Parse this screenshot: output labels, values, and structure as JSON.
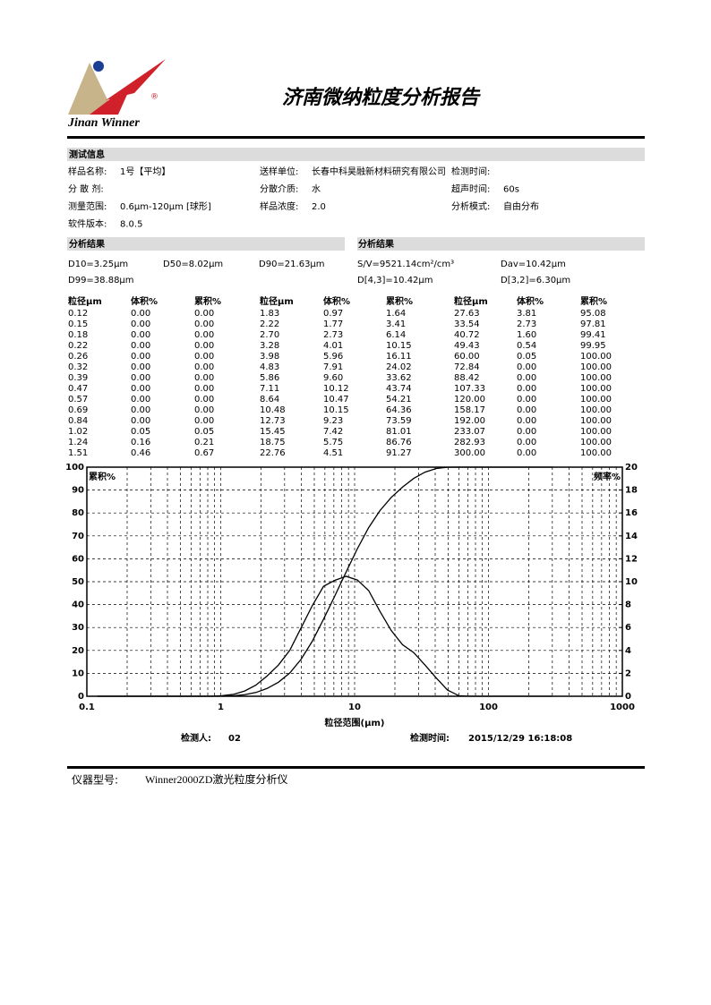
{
  "header": {
    "brand": "Jinan Winner",
    "title": "济南微纳粒度分析报告"
  },
  "info": {
    "heading": "测试信息",
    "fields": [
      {
        "label": "样品名称:",
        "value": "1号【平均】"
      },
      {
        "label": "送样单位:",
        "value": "长春中科昊融新材料研究有限公司"
      },
      {
        "label": "检测时间:"
      },
      {
        "label": "分 散 剂:"
      },
      {
        "label": "分散介质:",
        "value": "水"
      },
      {
        "label": "超声时间:",
        "value": "60s"
      },
      {
        "label": "测量范围:",
        "value": "0.6μm-120μm [球形]"
      },
      {
        "label": "样品浓度:",
        "value": "2.0"
      },
      {
        "label": "分析模式:",
        "value": "自由分布"
      },
      {
        "label": "软件版本:",
        "value": "8.0.5"
      }
    ]
  },
  "results": {
    "heading": "分析结果",
    "left": [
      "D10=3.25μm",
      "D50=8.02μm",
      "D90=21.63μm",
      "D99=38.88μm"
    ],
    "right": [
      "S/V=9521.14cm²/cm³",
      "Dav=10.42μm",
      "D[4,3]=10.42μm",
      "D[3,2]=6.30μm"
    ]
  },
  "table": {
    "headers": [
      "粒径μm",
      "体积%",
      "累积%"
    ],
    "rows": [
      [
        "0.12",
        "0.00",
        "0.00",
        "1.83",
        "0.97",
        "1.64",
        "27.63",
        "3.81",
        "95.08"
      ],
      [
        "0.15",
        "0.00",
        "0.00",
        "2.22",
        "1.77",
        "3.41",
        "33.54",
        "2.73",
        "97.81"
      ],
      [
        "0.18",
        "0.00",
        "0.00",
        "2.70",
        "2.73",
        "6.14",
        "40.72",
        "1.60",
        "99.41"
      ],
      [
        "0.22",
        "0.00",
        "0.00",
        "3.28",
        "4.01",
        "10.15",
        "49.43",
        "0.54",
        "99.95"
      ],
      [
        "0.26",
        "0.00",
        "0.00",
        "3.98",
        "5.96",
        "16.11",
        "60.00",
        "0.05",
        "100.00"
      ],
      [
        "0.32",
        "0.00",
        "0.00",
        "4.83",
        "7.91",
        "24.02",
        "72.84",
        "0.00",
        "100.00"
      ],
      [
        "0.39",
        "0.00",
        "0.00",
        "5.86",
        "9.60",
        "33.62",
        "88.42",
        "0.00",
        "100.00"
      ],
      [
        "0.47",
        "0.00",
        "0.00",
        "7.11",
        "10.12",
        "43.74",
        "107.33",
        "0.00",
        "100.00"
      ],
      [
        "0.57",
        "0.00",
        "0.00",
        "8.64",
        "10.47",
        "54.21",
        "120.00",
        "0.00",
        "100.00"
      ],
      [
        "0.69",
        "0.00",
        "0.00",
        "10.48",
        "10.15",
        "64.36",
        "158.17",
        "0.00",
        "100.00"
      ],
      [
        "0.84",
        "0.00",
        "0.00",
        "12.73",
        "9.23",
        "73.59",
        "192.00",
        "0.00",
        "100.00"
      ],
      [
        "1.02",
        "0.05",
        "0.05",
        "15.45",
        "7.42",
        "81.01",
        "233.07",
        "0.00",
        "100.00"
      ],
      [
        "1.24",
        "0.16",
        "0.21",
        "18.75",
        "5.75",
        "86.76",
        "282.93",
        "0.00",
        "100.00"
      ],
      [
        "1.51",
        "0.46",
        "0.67",
        "22.76",
        "4.51",
        "91.27",
        "300.00",
        "0.00",
        "100.00"
      ]
    ]
  },
  "chart_data": {
    "type": "line",
    "xlabel": "粒径范围(μm)",
    "ylabel": "累积%",
    "y2label": "频率%",
    "xscale": "log",
    "xlim": [
      0.1,
      1000
    ],
    "xticks": [
      0.1,
      1,
      10,
      100,
      1000
    ],
    "ylim": [
      0,
      100
    ],
    "yticks": [
      0,
      10,
      20,
      30,
      40,
      50,
      60,
      70,
      80,
      90,
      100
    ],
    "y2lim": [
      0,
      20
    ],
    "y2ticks": [
      0,
      2,
      4,
      6,
      8,
      10,
      12,
      14,
      16,
      18,
      20
    ],
    "grid": true,
    "x": [
      0.12,
      0.15,
      0.18,
      0.22,
      0.26,
      0.32,
      0.39,
      0.47,
      0.57,
      0.69,
      0.84,
      1.02,
      1.24,
      1.51,
      1.83,
      2.22,
      2.7,
      3.28,
      3.98,
      4.83,
      5.86,
      7.11,
      8.64,
      10.48,
      12.73,
      15.45,
      18.75,
      22.76,
      27.63,
      33.54,
      40.72,
      49.43,
      60.0,
      72.84,
      88.42,
      107.33,
      120.0,
      158.17,
      192.0,
      233.07,
      282.93,
      300.0
    ],
    "series": [
      {
        "color": "#000000",
        "values": [
          0,
          0,
          0,
          0,
          0,
          0,
          0,
          0,
          0,
          0,
          0,
          0.05,
          0.21,
          0.67,
          1.64,
          3.41,
          6.14,
          10.15,
          16.11,
          24.02,
          33.62,
          43.74,
          54.21,
          64.36,
          73.59,
          81.01,
          86.76,
          91.27,
          95.08,
          97.81,
          99.41,
          99.95,
          100,
          100,
          100,
          100,
          100,
          100,
          100,
          100,
          100,
          100
        ]
      },
      {
        "color": "#000000",
        "axis": "y2",
        "values": [
          0,
          0,
          0,
          0,
          0,
          0,
          0,
          0,
          0,
          0,
          0,
          0.05,
          0.16,
          0.46,
          0.97,
          1.77,
          2.73,
          4.01,
          5.96,
          7.91,
          9.6,
          10.12,
          10.47,
          10.15,
          9.23,
          7.42,
          5.75,
          4.51,
          3.81,
          2.73,
          1.6,
          0.54,
          0.05,
          0,
          0,
          0,
          0,
          0,
          0,
          0,
          0,
          0
        ]
      }
    ]
  },
  "footer": {
    "operator": {
      "label": "检测人:",
      "value": "02"
    },
    "time": {
      "label": "检测时间:",
      "value": "2015/12/29 16:18:08"
    },
    "instrument": {
      "label": "仪器型号:",
      "value": "Winner2000ZD激光粒度分析仪"
    }
  }
}
